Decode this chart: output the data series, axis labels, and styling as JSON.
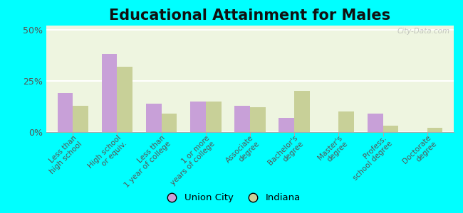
{
  "title": "Educational Attainment for Males",
  "categories": [
    "Less than\nhigh school",
    "High school\nor equiv.",
    "Less than\n1 year of college",
    "1 or more\nyears of college",
    "Associate\ndegree",
    "Bachelor's\ndegree",
    "Master's\ndegree",
    "Profess.\nschool degree",
    "Doctorate\ndegree"
  ],
  "union_city": [
    19,
    38,
    14,
    15,
    13,
    7,
    0,
    9,
    0
  ],
  "indiana": [
    13,
    32,
    9,
    15,
    12,
    20,
    10,
    3,
    2
  ],
  "union_city_color": "#c8a0d8",
  "indiana_color": "#c8d098",
  "background_color": "#00ffff",
  "plot_bg_color": "#eef5e0",
  "yticks": [
    0,
    25,
    50
  ],
  "ylim": [
    0,
    52
  ],
  "bar_width": 0.35,
  "title_fontsize": 15,
  "legend_labels": [
    "Union City",
    "Indiana"
  ],
  "watermark": "City-Data.com"
}
